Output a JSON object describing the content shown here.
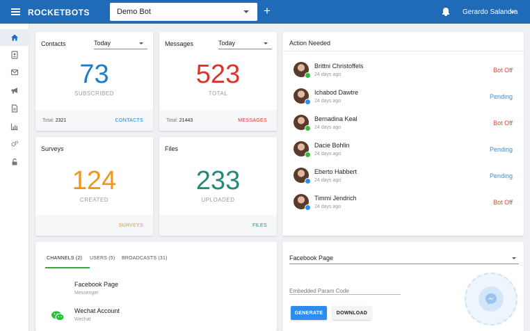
{
  "header": {
    "logo": "ROCKETBOTS",
    "bot_selector": "Demo Bot",
    "add_symbol": "+",
    "user_name": "Gerardo Salandra"
  },
  "sidebar": {
    "items": [
      {
        "icon": "home-icon",
        "active": true
      },
      {
        "icon": "contacts-icon"
      },
      {
        "icon": "mail-icon"
      },
      {
        "icon": "megaphone-icon"
      },
      {
        "icon": "document-icon"
      },
      {
        "icon": "chart-icon"
      },
      {
        "icon": "settings-icon"
      },
      {
        "icon": "unlock-icon"
      }
    ]
  },
  "contacts": {
    "title": "Contacts",
    "filter": "Today",
    "number": "73",
    "label": "SUBSCRIBED",
    "total_label": "Total:",
    "total_value": "2321",
    "link": "CONTACTS",
    "color": "#1f7dc8"
  },
  "messages": {
    "title": "Messages",
    "filter": "Today",
    "number": "523",
    "label": "TOTAL",
    "total_label": "Total:",
    "total_value": "21443",
    "link": "MESSAGES",
    "color": "#d9352b"
  },
  "surveys": {
    "title": "Surveys",
    "number": "124",
    "label": "CREATED",
    "link": "SURVEYS",
    "color": "#f0961e"
  },
  "files": {
    "title": "Files",
    "number": "233",
    "label": "UPLOADED",
    "link": "FILES",
    "color": "#23897a"
  },
  "action_needed": {
    "title": "Action Needed",
    "items": [
      {
        "name": "Brittni Christoffels",
        "time": "24 days ago",
        "status": "Bot Off",
        "channel": "wechat"
      },
      {
        "name": "Ichabod Dawtre",
        "time": "24 days ago",
        "status": "Pending",
        "channel": "messenger"
      },
      {
        "name": "Bernadina Keal",
        "time": "24 days ago",
        "status": "Bot Off",
        "channel": "wechat"
      },
      {
        "name": "Dacie Bohlin",
        "time": "24 days ago",
        "status": "Pending",
        "channel": "wechat"
      },
      {
        "name": "Eberto Habbert",
        "time": "24 days ago",
        "status": "Pending",
        "channel": "messenger"
      },
      {
        "name": "Timmi Jendrich",
        "time": "24 days ago",
        "status": "Bot Off",
        "channel": "messenger"
      }
    ],
    "status_colors": {
      "Bot Off": "#e0442c",
      "Pending": "#3a8fd6"
    }
  },
  "channels": {
    "tabs": [
      "CHANNELS (2)",
      "USERS (5)",
      "BROADCASTS (31)"
    ],
    "items": [
      {
        "name": "Facebook Page",
        "type": "Messenger"
      },
      {
        "name": "Wechat Account",
        "type": "Wechat"
      }
    ]
  },
  "embed": {
    "page_select": "Facebook Page",
    "param_placeholder": "Embedded Param Code",
    "generate_label": "GENERATE",
    "download_label": "DOWNLOAD"
  }
}
